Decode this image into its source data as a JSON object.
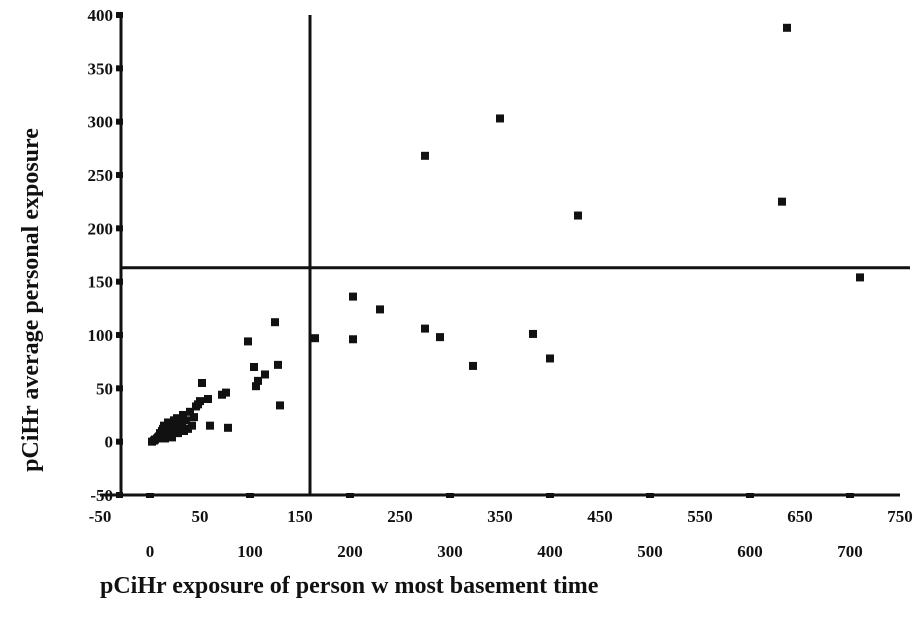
{
  "chart_data": {
    "type": "scatter",
    "xlabel": "pCiHr exposure of person w most basement time",
    "ylabel": "pCiHr average personal exposure",
    "xlim": [
      -50,
      750
    ],
    "ylim": [
      -50,
      400
    ],
    "x_ticks_top": [
      "-50",
      "50",
      "150",
      "250",
      "350",
      "450",
      "550",
      "650",
      "750"
    ],
    "x_ticks_bottom": [
      "0",
      "100",
      "200",
      "300",
      "400",
      "500",
      "600",
      "700"
    ],
    "y_ticks": [
      "400",
      "350",
      "300",
      "250",
      "200",
      "150",
      "100",
      "50",
      "0",
      "-50"
    ],
    "reference_lines": {
      "x": 160,
      "y": 163
    },
    "grid": false,
    "legend": "none",
    "point_color": "#111111",
    "series": [
      {
        "points": [
          [
            2,
            0
          ],
          [
            4,
            1
          ],
          [
            5,
            2
          ],
          [
            7,
            3
          ],
          [
            8,
            4
          ],
          [
            9,
            5
          ],
          [
            10,
            8
          ],
          [
            11,
            6
          ],
          [
            12,
            10
          ],
          [
            13,
            12
          ],
          [
            14,
            15
          ],
          [
            15,
            3
          ],
          [
            16,
            13
          ],
          [
            17,
            7
          ],
          [
            18,
            18
          ],
          [
            19,
            9
          ],
          [
            20,
            14
          ],
          [
            21,
            17
          ],
          [
            22,
            4
          ],
          [
            23,
            10
          ],
          [
            24,
            20
          ],
          [
            25,
            12
          ],
          [
            26,
            16
          ],
          [
            27,
            22
          ],
          [
            28,
            8
          ],
          [
            30,
            14
          ],
          [
            32,
            18
          ],
          [
            33,
            25
          ],
          [
            34,
            10
          ],
          [
            36,
            20
          ],
          [
            38,
            12
          ],
          [
            40,
            28
          ],
          [
            42,
            15
          ],
          [
            44,
            23
          ],
          [
            46,
            33
          ],
          [
            48,
            35
          ],
          [
            50,
            38
          ],
          [
            52,
            55
          ],
          [
            58,
            40
          ],
          [
            60,
            15
          ],
          [
            72,
            44
          ],
          [
            76,
            46
          ],
          [
            78,
            13
          ],
          [
            98,
            94
          ],
          [
            104,
            70
          ],
          [
            106,
            52
          ],
          [
            108,
            57
          ],
          [
            115,
            63
          ],
          [
            125,
            112
          ],
          [
            128,
            72
          ],
          [
            130,
            34
          ],
          [
            165,
            97
          ],
          [
            203,
            136
          ],
          [
            203,
            96
          ],
          [
            230,
            124
          ],
          [
            275,
            106
          ],
          [
            275,
            268
          ],
          [
            290,
            98
          ],
          [
            323,
            71
          ],
          [
            350,
            303
          ],
          [
            383,
            101
          ],
          [
            400,
            78
          ],
          [
            428,
            212
          ],
          [
            632,
            225
          ],
          [
            637,
            388
          ],
          [
            710,
            154
          ]
        ]
      }
    ]
  }
}
